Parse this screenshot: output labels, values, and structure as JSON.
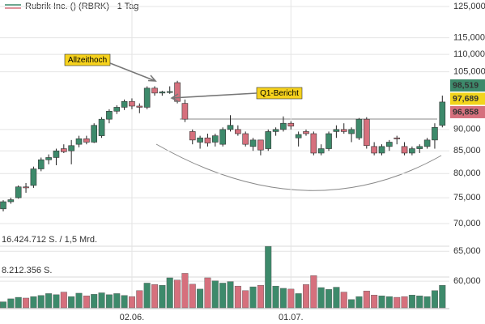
{
  "chart_data": {
    "type": "candlestick",
    "title": "Rubrik Inc. () (RBRK) - 1 Tag",
    "categories": [
      null,
      null,
      null,
      null,
      null,
      null,
      null,
      null,
      null,
      null,
      null,
      null,
      null,
      null,
      null,
      null,
      null,
      "02.06.",
      null,
      null,
      null,
      null,
      null,
      null,
      null,
      null,
      null,
      null,
      null,
      null,
      null,
      null,
      null,
      null,
      null,
      null,
      null,
      null,
      "01.07.",
      null,
      null,
      null,
      null,
      null,
      null,
      null,
      null,
      null,
      null,
      null,
      null,
      null,
      null,
      null,
      null,
      null,
      null,
      null,
      null
    ],
    "open": [
      72800,
      74200,
      75000,
      77200,
      77500,
      81000,
      83000,
      83500,
      85500,
      85000,
      86500,
      87800,
      87000,
      88500,
      92500,
      94500,
      95500,
      97000,
      95800,
      95500,
      100500,
      99200,
      99500,
      102000,
      96500,
      89500,
      87000,
      88000,
      87000,
      86500,
      90000,
      90000,
      89000,
      86000,
      87500,
      85500,
      89500,
      90000,
      91500,
      88000,
      89500,
      89000,
      84500,
      85500,
      89500,
      90000,
      89000,
      88000,
      92500,
      86000,
      84500,
      86000,
      88000,
      86000,
      84500,
      85500,
      86000,
      87500,
      91000
    ],
    "high": [
      74500,
      75000,
      77500,
      78000,
      81500,
      83500,
      84200,
      85500,
      86500,
      87500,
      88500,
      88500,
      91500,
      93000,
      95000,
      96000,
      97500,
      97800,
      96500,
      101000,
      101000,
      99800,
      101000,
      102500,
      97500,
      90000,
      88500,
      89000,
      89000,
      90500,
      93500,
      91000,
      89500,
      88000,
      87500,
      90000,
      90500,
      93200,
      92000,
      89500,
      90000,
      89500,
      86500,
      89500,
      91000,
      91500,
      90500,
      92800,
      93000,
      87000,
      86500,
      87500,
      88500,
      87000,
      86000,
      86500,
      88000,
      91500,
      98519
    ],
    "low": [
      72300,
      73800,
      74800,
      76000,
      77000,
      80500,
      82000,
      81800,
      84500,
      82000,
      85800,
      86500,
      86800,
      88000,
      91500,
      93800,
      94800,
      95000,
      94000,
      95000,
      98500,
      98500,
      99000,
      96500,
      91800,
      86500,
      85500,
      86000,
      86000,
      86000,
      89500,
      88500,
      86000,
      85000,
      84000,
      85000,
      88500,
      89500,
      90000,
      86000,
      88500,
      84000,
      84000,
      85000,
      88000,
      89000,
      87000,
      87500,
      85500,
      84000,
      84000,
      85000,
      86500,
      84000,
      84000,
      84500,
      85500,
      85500,
      90500
    ],
    "close": [
      74200,
      74600,
      77200,
      77000,
      81000,
      83000,
      83500,
      85000,
      84800,
      86200,
      87800,
      87000,
      91000,
      92500,
      94500,
      95500,
      97000,
      95800,
      95500,
      100500,
      99200,
      99500,
      99600,
      97000,
      92500,
      87500,
      88000,
      86800,
      88500,
      90000,
      91000,
      89000,
      86500,
      87500,
      85200,
      89500,
      90000,
      91500,
      90800,
      88800,
      89000,
      84500,
      85500,
      89000,
      90000,
      89500,
      90000,
      92500,
      86200,
      84500,
      86000,
      87000,
      87800,
      84500,
      85500,
      86000,
      87500,
      90500,
      96858
    ],
    "volume": [
      1600000,
      2400000,
      2800000,
      2600000,
      3000000,
      3300000,
      3800000,
      3500000,
      4200000,
      3000000,
      3900000,
      3200000,
      3600000,
      4000000,
      3500000,
      3800000,
      3300000,
      3000000,
      4600000,
      6600000,
      6200000,
      6000000,
      8000000,
      7400000,
      9200000,
      6300000,
      5000000,
      8000000,
      7200000,
      6600000,
      7000000,
      5800000,
      4600000,
      5600000,
      6000000,
      16400000,
      5800000,
      5200000,
      5000000,
      3800000,
      6200000,
      8600000,
      5400000,
      4900000,
      5500000,
      4200000,
      2200000,
      3000000,
      4500000,
      3400000,
      3200000,
      3000000,
      2800000,
      3000000,
      3400000,
      3200000,
      3000000,
      4600000,
      6000000
    ],
    "up_color": "#3d8a6b",
    "down_color": "#d6707d",
    "log_scale": true,
    "ylim": [
      54100,
      127200
    ],
    "yticks": [
      {
        "value": 125000,
        "label": "125,000"
      },
      {
        "value": 115000,
        "label": "115,000"
      },
      {
        "value": 110000,
        "label": "110,000"
      },
      {
        "value": 105000,
        "label": "105,000"
      },
      {
        "value": 90000,
        "label": "90,000"
      },
      {
        "value": 85000,
        "label": "85,000"
      },
      {
        "value": 80000,
        "label": "80,000"
      },
      {
        "value": 75000,
        "label": "75,000"
      },
      {
        "value": 70000,
        "label": "70,000"
      },
      {
        "value": 65000,
        "label": "65,000"
      },
      {
        "value": 60000,
        "label": "60,000"
      }
    ],
    "vlim": [
      0,
      16424712
    ],
    "vticks": [
      {
        "value": 16424712,
        "label": "16.424.712 S. / 1,5 Mrd."
      },
      {
        "value": 8212356,
        "label": "8.212.356 S."
      }
    ],
    "grid": true,
    "annotations": [
      "Allzeithoch",
      "Q1-Bericht"
    ],
    "price_labels": [
      {
        "value": 98519,
        "label": "98,519",
        "color": "#3d8a6b"
      },
      {
        "value": 97689,
        "label": "97,689",
        "color": "#f2d51c"
      },
      {
        "value": 96858,
        "label": "96,858",
        "color": "#d6707d"
      }
    ]
  }
}
